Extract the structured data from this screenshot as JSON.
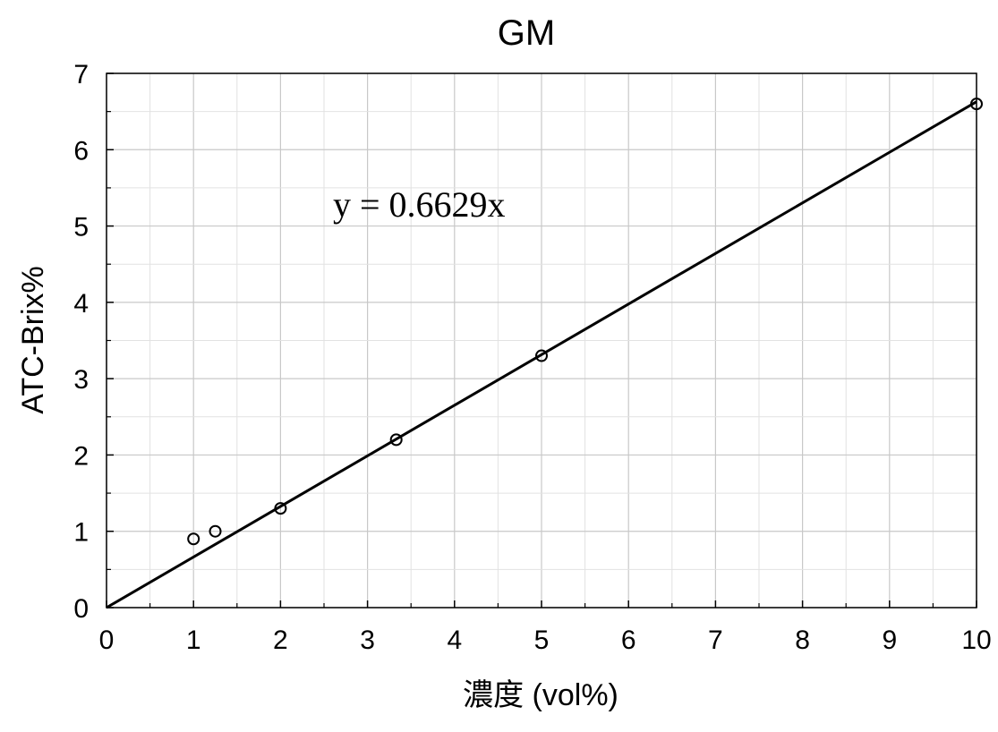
{
  "chart_data": {
    "type": "scatter",
    "title": "GM",
    "xlabel": "濃度 (vol%)",
    "ylabel": "ATC-Brix%",
    "xlim": [
      0,
      10
    ],
    "ylim": [
      0,
      7
    ],
    "x_ticks": [
      "0",
      "1",
      "2",
      "3",
      "4",
      "5",
      "6",
      "7",
      "8",
      "9",
      "10"
    ],
    "y_ticks": [
      "0",
      "1",
      "2",
      "3",
      "4",
      "5",
      "6",
      "7"
    ],
    "grid": true,
    "series": [
      {
        "marker": "open-circle",
        "points": [
          {
            "x": 1.0,
            "y": 0.9
          },
          {
            "x": 1.25,
            "y": 1.0
          },
          {
            "x": 2.0,
            "y": 1.3
          },
          {
            "x": 3.33,
            "y": 2.2
          },
          {
            "x": 5.0,
            "y": 3.3
          },
          {
            "x": 10.0,
            "y": 6.6
          }
        ]
      }
    ],
    "trendline": {
      "slope": 0.6629,
      "intercept": 0,
      "x_range": [
        0,
        10
      ]
    },
    "annotations": [
      {
        "text": "y = 0.6629x"
      }
    ],
    "colors": {
      "marks": "#000000",
      "grid_major": "#c8c8c8",
      "grid_minor": "#e2e2e2"
    }
  }
}
